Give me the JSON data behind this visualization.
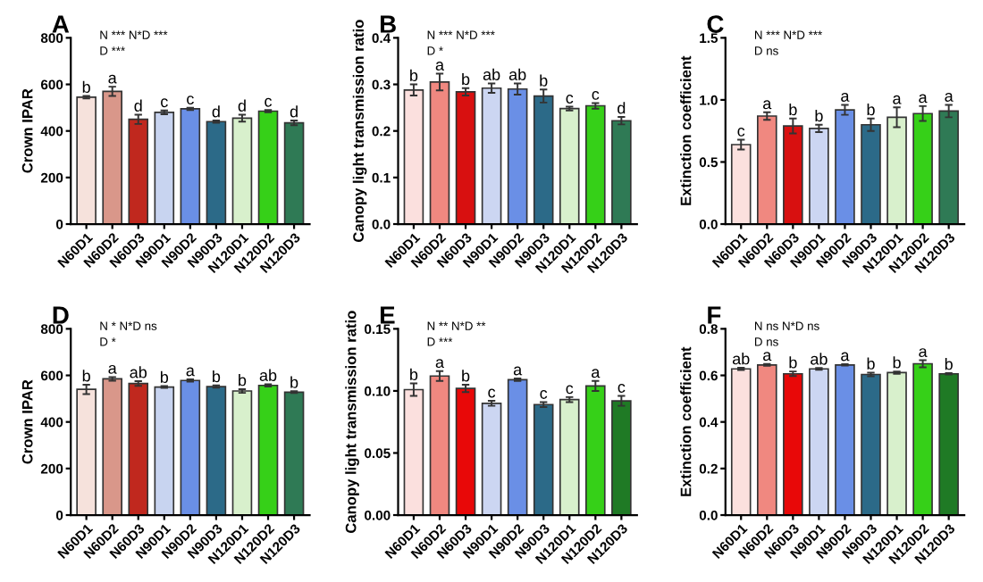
{
  "chart_data": [
    {
      "type": "bar",
      "title": "A",
      "ylabel": "Crown IPAR",
      "categories": [
        "N60D1",
        "N60D2",
        "N60D3",
        "N90D1",
        "N90D2",
        "N90D3",
        "N120D1",
        "N120D2",
        "N120D3"
      ],
      "values": [
        545,
        570,
        450,
        480,
        495,
        440,
        455,
        485,
        435
      ],
      "errors": [
        5,
        20,
        20,
        8,
        5,
        5,
        15,
        5,
        10
      ],
      "colors": [
        "#f6e2dc",
        "#d9978a",
        "#c0281e",
        "#c8d4f0",
        "#6a8fe6",
        "#2c6a88",
        "#d8f0cc",
        "#36d018",
        "#2f7a55"
      ],
      "ylim": [
        0,
        800
      ],
      "yticks": [
        0,
        200,
        400,
        600,
        800
      ],
      "grid": false,
      "annotations": [
        "N *** N*D ***",
        "D ***",
        {
          "text": "b",
          "x": "N60D1",
          "y": 550
        },
        {
          "text": "a",
          "x": "N60D2",
          "y": 590
        },
        {
          "text": "d",
          "x": "N60D3",
          "y": 470
        },
        {
          "text": "c",
          "x": "N90D1",
          "y": 488
        },
        {
          "text": "c",
          "x": "N90D2",
          "y": 500
        },
        {
          "text": "d",
          "x": "N90D3",
          "y": 445
        },
        {
          "text": "d",
          "x": "N120D1",
          "y": 470
        },
        {
          "text": "c",
          "x": "N120D2",
          "y": 490
        },
        {
          "text": "d",
          "x": "N120D3",
          "y": 445
        }
      ]
    },
    {
      "type": "bar",
      "title": "B",
      "ylabel": "Canopy light transmission ratio",
      "categories": [
        "N60D1",
        "N60D2",
        "N60D3",
        "N90D1",
        "N90D2",
        "N90D3",
        "N120D1",
        "N120D2",
        "N120D3"
      ],
      "values": [
        0.288,
        0.305,
        0.284,
        0.292,
        0.29,
        0.275,
        0.248,
        0.254,
        0.222
      ],
      "errors": [
        0.012,
        0.018,
        0.008,
        0.01,
        0.012,
        0.014,
        0.004,
        0.006,
        0.008
      ],
      "colors": [
        "#fbe0de",
        "#f08880",
        "#d81010",
        "#ccd6f2",
        "#6a8fe6",
        "#2c6a88",
        "#d8f0cc",
        "#36d018",
        "#2f7a55"
      ],
      "ylim": [
        0,
        0.4
      ],
      "yticks": [
        {
          "value": 0,
          "label": "0.0"
        },
        0.1,
        0.2,
        0.3,
        0.4
      ],
      "grid": false,
      "annotations": [
        "N *** N*D ***",
        "D *",
        {
          "text": "b",
          "x": "N60D1",
          "y": 0.3
        },
        {
          "text": "a",
          "x": "N60D2",
          "y": 0.323
        },
        {
          "text": "b",
          "x": "N60D3",
          "y": 0.292
        },
        {
          "text": "ab",
          "x": "N90D1",
          "y": 0.302
        },
        {
          "text": "ab",
          "x": "N90D2",
          "y": 0.302
        },
        {
          "text": "b",
          "x": "N90D3",
          "y": 0.289
        },
        {
          "text": "c",
          "x": "N120D1",
          "y": 0.252
        },
        {
          "text": "c",
          "x": "N120D2",
          "y": 0.26
        },
        {
          "text": "d",
          "x": "N120D3",
          "y": 0.23
        }
      ]
    },
    {
      "type": "bar",
      "title": "C",
      "ylabel": "Extinction coefficient",
      "categories": [
        "N60D1",
        "N60D2",
        "N60D3",
        "N90D1",
        "N90D2",
        "N90D3",
        "N120D1",
        "N120D2",
        "N120D3"
      ],
      "values": [
        0.64,
        0.87,
        0.79,
        0.77,
        0.92,
        0.8,
        0.86,
        0.89,
        0.91
      ],
      "errors": [
        0.04,
        0.03,
        0.06,
        0.03,
        0.04,
        0.05,
        0.08,
        0.06,
        0.05
      ],
      "colors": [
        "#fbe0de",
        "#f08880",
        "#d81010",
        "#ccd6f2",
        "#6a8fe6",
        "#2c6a88",
        "#d8f0cc",
        "#36d018",
        "#2f7a55"
      ],
      "ylim": [
        0,
        1.5
      ],
      "yticks": [
        {
          "value": 0,
          "label": "0.0"
        },
        0.5,
        {
          "value": 1,
          "label": "1.0"
        },
        1.5
      ],
      "grid": false,
      "annotations": [
        "N *** N*D ***",
        "D ns",
        {
          "text": "c",
          "x": "N60D1",
          "y": 0.68
        },
        {
          "text": "a",
          "x": "N60D2",
          "y": 0.9
        },
        {
          "text": "b",
          "x": "N60D3",
          "y": 0.85
        },
        {
          "text": "b",
          "x": "N90D1",
          "y": 0.8
        },
        {
          "text": "a",
          "x": "N90D2",
          "y": 0.96
        },
        {
          "text": "b",
          "x": "N90D3",
          "y": 0.85
        },
        {
          "text": "a",
          "x": "N120D1",
          "y": 0.94
        },
        {
          "text": "a",
          "x": "N120D2",
          "y": 0.95
        },
        {
          "text": "a",
          "x": "N120D3",
          "y": 0.96
        }
      ]
    },
    {
      "type": "bar",
      "title": "D",
      "ylabel": "Crown IPAR",
      "categories": [
        "N60D1",
        "N60D2",
        "N60D3",
        "N90D1",
        "N90D2",
        "N90D3",
        "N120D1",
        "N120D2",
        "N120D3"
      ],
      "values": [
        540,
        585,
        565,
        550,
        578,
        552,
        533,
        557,
        528
      ],
      "errors": [
        20,
        8,
        10,
        4,
        5,
        5,
        8,
        5,
        4
      ],
      "colors": [
        "#f6e2dc",
        "#d9978a",
        "#c0281e",
        "#c8d4f0",
        "#6a8fe6",
        "#2c6a88",
        "#d8f0cc",
        "#36d018",
        "#2f7a55"
      ],
      "ylim": [
        0,
        800
      ],
      "yticks": [
        0,
        200,
        400,
        600,
        800
      ],
      "grid": false,
      "annotations": [
        "N * N*D ns",
        "D *",
        {
          "text": "b",
          "x": "N60D1",
          "y": 560
        },
        {
          "text": "a",
          "x": "N60D2",
          "y": 593
        },
        {
          "text": "ab",
          "x": "N60D3",
          "y": 575
        },
        {
          "text": "b",
          "x": "N90D1",
          "y": 554
        },
        {
          "text": "a",
          "x": "N90D2",
          "y": 583
        },
        {
          "text": "b",
          "x": "N90D3",
          "y": 557
        },
        {
          "text": "b",
          "x": "N120D1",
          "y": 541
        },
        {
          "text": "ab",
          "x": "N120D2",
          "y": 562
        },
        {
          "text": "b",
          "x": "N120D3",
          "y": 532
        }
      ]
    },
    {
      "type": "bar",
      "title": "E",
      "ylabel": "Canopy light transmission ratio",
      "categories": [
        "N60D1",
        "N60D2",
        "N60D3",
        "N90D1",
        "N90D2",
        "N90D3",
        "N120D1",
        "N120D2",
        "N120D3"
      ],
      "values": [
        0.101,
        0.112,
        0.102,
        0.09,
        0.109,
        0.089,
        0.093,
        0.104,
        0.092
      ],
      "errors": [
        0.005,
        0.004,
        0.003,
        0.002,
        0.001,
        0.002,
        0.002,
        0.004,
        0.004
      ],
      "colors": [
        "#fbe0de",
        "#f08880",
        "#e80808",
        "#ccd6f2",
        "#6a8fe6",
        "#2c6a88",
        "#d8f0cc",
        "#36d018",
        "#1f7a25"
      ],
      "ylim": [
        0,
        0.15
      ],
      "yticks": [
        {
          "value": 0,
          "label": "0.00"
        },
        0.05,
        {
          "value": 0.1,
          "label": "0.10"
        },
        0.15
      ],
      "grid": false,
      "annotations": [
        "N ** N*D **",
        "D ***",
        {
          "text": "b",
          "x": "N60D1",
          "y": 0.106
        },
        {
          "text": "a",
          "x": "N60D2",
          "y": 0.116
        },
        {
          "text": "b",
          "x": "N60D3",
          "y": 0.105
        },
        {
          "text": "c",
          "x": "N90D1",
          "y": 0.092
        },
        {
          "text": "a",
          "x": "N90D2",
          "y": 0.11
        },
        {
          "text": "c",
          "x": "N90D3",
          "y": 0.091
        },
        {
          "text": "c",
          "x": "N120D1",
          "y": 0.095
        },
        {
          "text": "a",
          "x": "N120D2",
          "y": 0.108
        },
        {
          "text": "c",
          "x": "N120D3",
          "y": 0.096
        }
      ]
    },
    {
      "type": "bar",
      "title": "F",
      "ylabel": "Extinction coefficient",
      "categories": [
        "N60D1",
        "N60D2",
        "N60D3",
        "N90D1",
        "N90D2",
        "N90D3",
        "N120D1",
        "N120D2",
        "N120D3"
      ],
      "values": [
        0.628,
        0.645,
        0.607,
        0.628,
        0.645,
        0.604,
        0.612,
        0.65,
        0.607
      ],
      "errors": [
        0.005,
        0.004,
        0.01,
        0.004,
        0.003,
        0.008,
        0.005,
        0.015,
        0.003
      ],
      "colors": [
        "#fbe0de",
        "#f08880",
        "#e80808",
        "#ccd6f2",
        "#6a8fe6",
        "#2c6a88",
        "#d8f0cc",
        "#36d018",
        "#1f7a25"
      ],
      "ylim": [
        0,
        0.8
      ],
      "yticks": [
        {
          "value": 0,
          "label": "0.0"
        },
        0.2,
        0.4,
        0.6,
        0.8
      ],
      "grid": false,
      "annotations": [
        "N ns N*D ns",
        "D ns",
        {
          "text": "ab",
          "x": "N60D1",
          "y": 0.633
        },
        {
          "text": "a",
          "x": "N60D2",
          "y": 0.649
        },
        {
          "text": "b",
          "x": "N60D3",
          "y": 0.617
        },
        {
          "text": "ab",
          "x": "N90D1",
          "y": 0.632
        },
        {
          "text": "a",
          "x": "N90D2",
          "y": 0.648
        },
        {
          "text": "b",
          "x": "N90D3",
          "y": 0.612
        },
        {
          "text": "b",
          "x": "N120D1",
          "y": 0.617
        },
        {
          "text": "a",
          "x": "N120D2",
          "y": 0.665
        },
        {
          "text": "b",
          "x": "N120D3",
          "y": 0.61
        }
      ]
    }
  ]
}
